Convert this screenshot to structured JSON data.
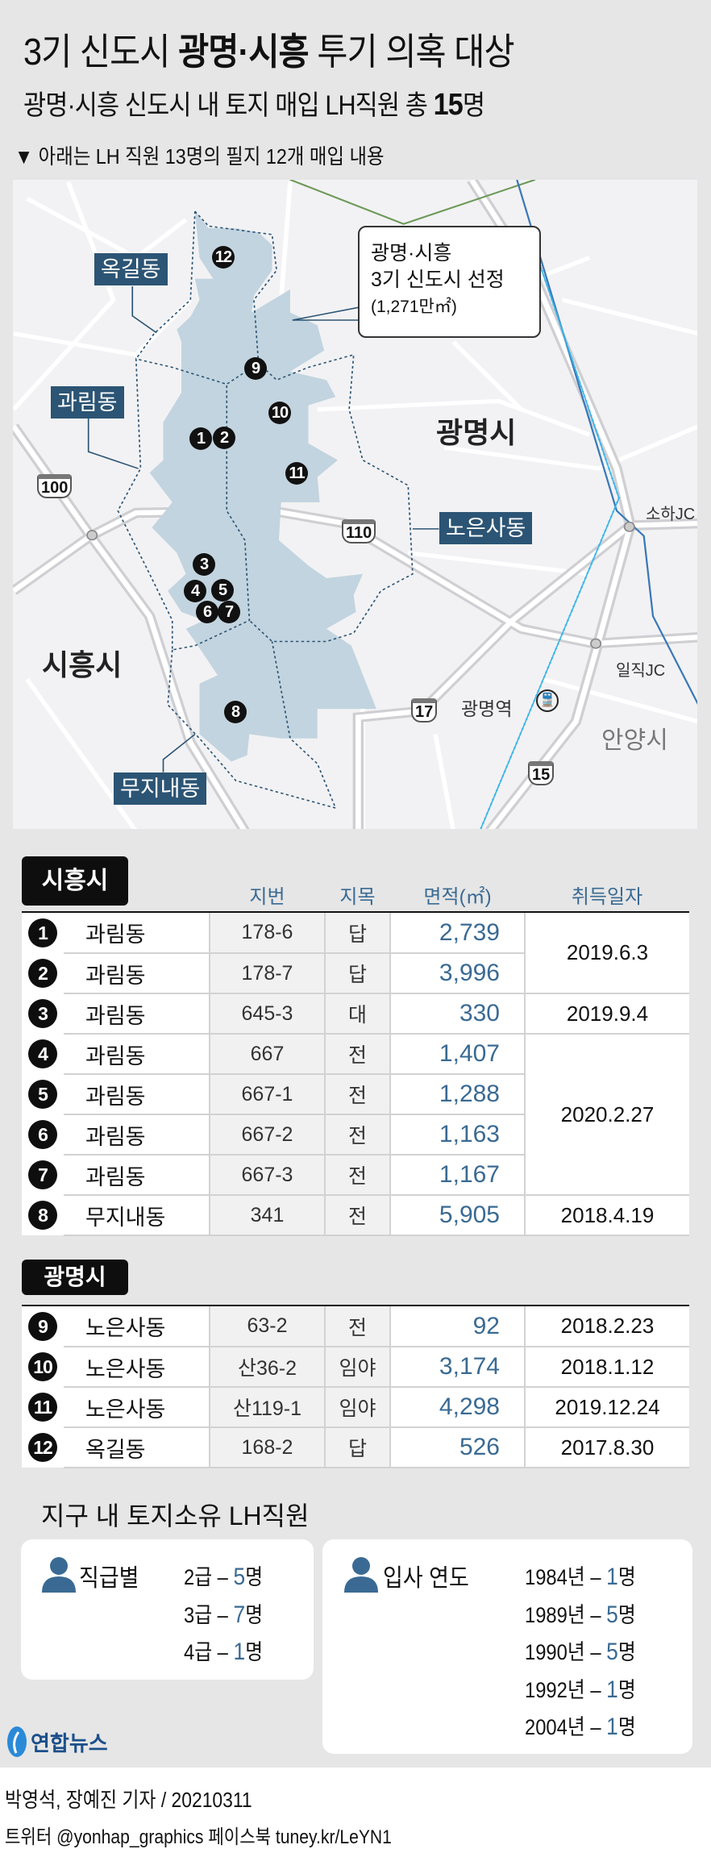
{
  "header": {
    "title_pre": "3기 신도시 ",
    "title_bold": "광명·시흥",
    "title_post": " 투기 의혹 대상",
    "subtitle_pre": "광명·시흥 신도시 내 토지 매입 LH직원 총 ",
    "subtitle_bold": "15",
    "subtitle_post": "명",
    "note": "▼ 아래는 LH 직원 13명의 필지 12개 매입 내용"
  },
  "map": {
    "callout": {
      "line1": "광명·시흥",
      "line2": "3기 신도시 선정",
      "line3": "(1,271만㎡)"
    },
    "dongs": [
      "옥길동",
      "과림동",
      "노은사동",
      "무지내동"
    ],
    "cities": {
      "gwangmyeong": "광명시",
      "siheung": "시흥시",
      "anyang": "안양시"
    },
    "places": {
      "soha_jc": "소하JC",
      "iljik_jc": "일직JC",
      "station": "광명역"
    },
    "routes": [
      "100",
      "110",
      "17",
      "15"
    ],
    "markers": [
      "1",
      "2",
      "3",
      "4",
      "5",
      "6",
      "7",
      "8",
      "9",
      "10",
      "11",
      "12"
    ],
    "colors": {
      "area": "#c2d4df",
      "label": "#2c5474",
      "rail_dark": "#3a78b8",
      "rail_light": "#3bb4e8",
      "green_line": "#6e9a58"
    }
  },
  "table": {
    "headers": {
      "jibeon": "지번",
      "jimok": "지목",
      "area": "면적(㎡)",
      "date": "취득일자"
    },
    "siheung": {
      "label": "시흥시",
      "rows": [
        {
          "no": "1",
          "dong": "과림동",
          "jibeon": "178-6",
          "jimok": "답",
          "area": "2,739"
        },
        {
          "no": "2",
          "dong": "과림동",
          "jibeon": "178-7",
          "jimok": "답",
          "area": "3,996"
        },
        {
          "no": "3",
          "dong": "과림동",
          "jibeon": "645-3",
          "jimok": "대",
          "area": "330"
        },
        {
          "no": "4",
          "dong": "과림동",
          "jibeon": "667",
          "jimok": "전",
          "area": "1,407"
        },
        {
          "no": "5",
          "dong": "과림동",
          "jibeon": "667-1",
          "jimok": "전",
          "area": "1,288"
        },
        {
          "no": "6",
          "dong": "과림동",
          "jibeon": "667-2",
          "jimok": "전",
          "area": "1,163"
        },
        {
          "no": "7",
          "dong": "과림동",
          "jibeon": "667-3",
          "jimok": "전",
          "area": "1,167"
        },
        {
          "no": "8",
          "dong": "무지내동",
          "jibeon": "341",
          "jimok": "전",
          "area": "5,905"
        }
      ],
      "dates": [
        {
          "date": "2019.6.3",
          "span": 2
        },
        {
          "date": "2019.9.4",
          "span": 1
        },
        {
          "date": "2020.2.27",
          "span": 4
        },
        {
          "date": "2018.4.19",
          "span": 1
        }
      ]
    },
    "gwangmyeong": {
      "label": "광명시",
      "rows": [
        {
          "no": "9",
          "dong": "노은사동",
          "jibeon": "63-2",
          "jimok": "전",
          "area": "92",
          "date": "2018.2.23"
        },
        {
          "no": "10",
          "dong": "노은사동",
          "jibeon": "산36-2",
          "jimok": "임야",
          "area": "3,174",
          "date": "2018.1.12"
        },
        {
          "no": "11",
          "dong": "노은사동",
          "jibeon": "산119-1",
          "jimok": "임야",
          "area": "4,298",
          "date": "2019.12.24"
        },
        {
          "no": "12",
          "dong": "옥길동",
          "jibeon": "168-2",
          "jimok": "답",
          "area": "526",
          "date": "2017.8.30"
        }
      ]
    }
  },
  "summary": {
    "title": "지구 내 토지소유 LH직원",
    "grade": {
      "label": "직급별",
      "items": [
        {
          "k": "2급 – ",
          "v": "5",
          "u": "명"
        },
        {
          "k": "3급 – ",
          "v": "7",
          "u": "명"
        },
        {
          "k": "4급 – ",
          "v": "1",
          "u": "명"
        }
      ]
    },
    "year": {
      "label": "입사 연도",
      "items": [
        {
          "k": "1984년 – ",
          "v": "1",
          "u": "명"
        },
        {
          "k": "1989년 – ",
          "v": "5",
          "u": "명"
        },
        {
          "k": "1990년 – ",
          "v": "5",
          "u": "명"
        },
        {
          "k": "1992년 – ",
          "v": "1",
          "u": "명"
        },
        {
          "k": "2004년 – ",
          "v": "1",
          "u": "명"
        }
      ]
    }
  },
  "footer": {
    "logo": "연합뉴스",
    "credit": "박영석, 장예진 기자 / 20210311",
    "sns": "트위터 @yonhap_graphics  페이스북 tuney.kr/LeYN1"
  }
}
